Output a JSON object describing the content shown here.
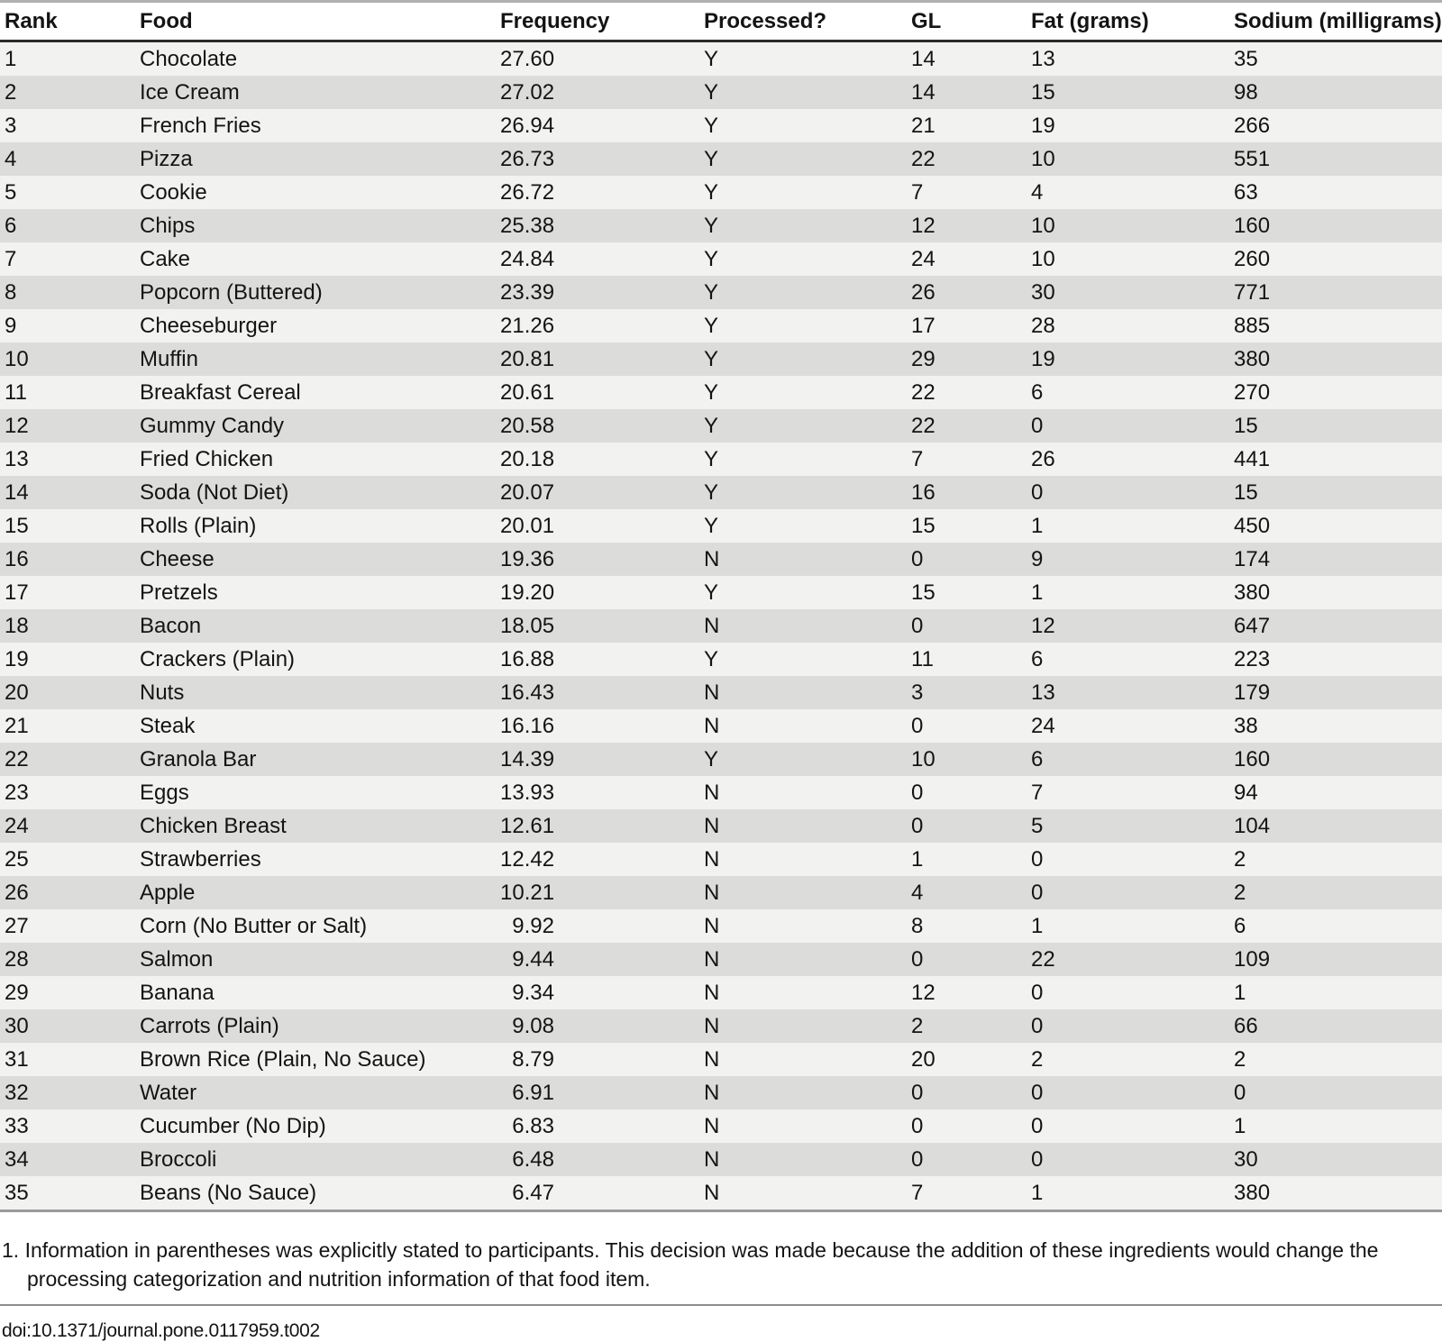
{
  "table": {
    "columns": [
      "Rank",
      "Food",
      "Frequency",
      "Processed?",
      "GL",
      "Fat (grams)",
      "Sodium (milligrams)"
    ],
    "rows": [
      [
        "1",
        "Chocolate",
        "27.60",
        "Y",
        "14",
        "13",
        "35"
      ],
      [
        "2",
        "Ice Cream",
        "27.02",
        "Y",
        "14",
        "15",
        "98"
      ],
      [
        "3",
        "French Fries",
        "26.94",
        "Y",
        "21",
        "19",
        "266"
      ],
      [
        "4",
        "Pizza",
        "26.73",
        "Y",
        "22",
        "10",
        "551"
      ],
      [
        "5",
        "Cookie",
        "26.72",
        "Y",
        "7",
        "4",
        "63"
      ],
      [
        "6",
        "Chips",
        "25.38",
        "Y",
        "12",
        "10",
        "160"
      ],
      [
        "7",
        "Cake",
        "24.84",
        "Y",
        "24",
        "10",
        "260"
      ],
      [
        "8",
        "Popcorn (Buttered)",
        "23.39",
        "Y",
        "26",
        "30",
        "771"
      ],
      [
        "9",
        "Cheeseburger",
        "21.26",
        "Y",
        "17",
        "28",
        "885"
      ],
      [
        "10",
        "Muffin",
        "20.81",
        "Y",
        "29",
        "19",
        "380"
      ],
      [
        "11",
        "Breakfast Cereal",
        "20.61",
        "Y",
        "22",
        "6",
        "270"
      ],
      [
        "12",
        "Gummy Candy",
        "20.58",
        "Y",
        "22",
        "0",
        "15"
      ],
      [
        "13",
        "Fried Chicken",
        "20.18",
        "Y",
        "7",
        "26",
        "441"
      ],
      [
        "14",
        "Soda (Not Diet)",
        "20.07",
        "Y",
        "16",
        "0",
        "15"
      ],
      [
        "15",
        "Rolls (Plain)",
        "20.01",
        "Y",
        "15",
        "1",
        "450"
      ],
      [
        "16",
        "Cheese",
        "19.36",
        "N",
        "0",
        "9",
        "174"
      ],
      [
        "17",
        "Pretzels",
        "19.20",
        "Y",
        "15",
        "1",
        "380"
      ],
      [
        "18",
        "Bacon",
        "18.05",
        "N",
        "0",
        "12",
        "647"
      ],
      [
        "19",
        "Crackers (Plain)",
        "16.88",
        "Y",
        "11",
        "6",
        "223"
      ],
      [
        "20",
        "Nuts",
        "16.43",
        "N",
        "3",
        "13",
        "179"
      ],
      [
        "21",
        "Steak",
        "16.16",
        "N",
        "0",
        "24",
        "38"
      ],
      [
        "22",
        "Granola Bar",
        "14.39",
        "Y",
        "10",
        "6",
        "160"
      ],
      [
        "23",
        "Eggs",
        "13.93",
        "N",
        "0",
        "7",
        "94"
      ],
      [
        "24",
        "Chicken Breast",
        "12.61",
        "N",
        "0",
        "5",
        "104"
      ],
      [
        "25",
        "Strawberries",
        "12.42",
        "N",
        "1",
        "0",
        "2"
      ],
      [
        "26",
        "Apple",
        "10.21",
        "N",
        "4",
        "0",
        "2"
      ],
      [
        "27",
        "Corn (No Butter or Salt)",
        "9.92",
        "N",
        "8",
        "1",
        "6"
      ],
      [
        "28",
        "Salmon",
        "9.44",
        "N",
        "0",
        "22",
        "109"
      ],
      [
        "29",
        "Banana",
        "9.34",
        "N",
        "12",
        "0",
        "1"
      ],
      [
        "30",
        "Carrots (Plain)",
        "9.08",
        "N",
        "2",
        "0",
        "66"
      ],
      [
        "31",
        "Brown Rice (Plain, No Sauce)",
        "8.79",
        "N",
        "20",
        "2",
        "2"
      ],
      [
        "32",
        "Water",
        "6.91",
        "N",
        "0",
        "0",
        "0"
      ],
      [
        "33",
        "Cucumber (No Dip)",
        "6.83",
        "N",
        "0",
        "0",
        "1"
      ],
      [
        "34",
        "Broccoli",
        "6.48",
        "N",
        "0",
        "0",
        "30"
      ],
      [
        "35",
        "Beans (No Sauce)",
        "6.47",
        "N",
        "7",
        "1",
        "380"
      ]
    ]
  },
  "footnote_lines": [
    "1. Information in parentheses was explicitly stated to participants. This decision was made because the addition of these ingredients would change the",
    "processing categorization and nutrition information of that food item."
  ],
  "doi": "doi:10.1371/journal.pone.0117959.t002",
  "colors": {
    "row_light": "#f2f2f1",
    "row_dark": "#dcdcdb",
    "top_rule": "#b0b0b0",
    "header_rule": "#2a2a2a",
    "bottom_rule": "#9a9a9a",
    "separator": "#8c8c8c"
  }
}
